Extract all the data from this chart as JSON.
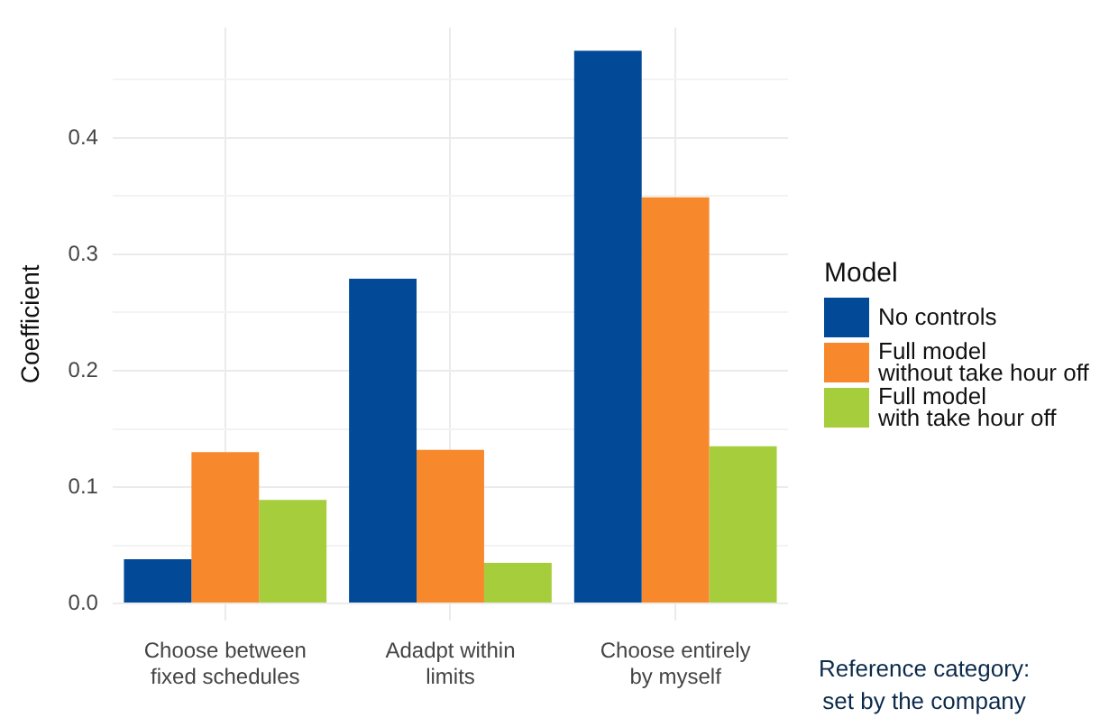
{
  "chart_data": {
    "type": "bar",
    "ylabel": "Coefficient",
    "legend_title": "Model",
    "legend": "right",
    "grid": true,
    "categories": [
      "Choose between\nfixed schedules",
      "Adadpt within\nlimits",
      "Choose entirely\nby myself"
    ],
    "series": [
      {
        "name": "No controls",
        "color": "#024a98",
        "values": [
          0.038,
          0.279,
          0.475
        ]
      },
      {
        "name": "Full model\nwithout take hour off",
        "color": "#f7882b",
        "values": [
          0.13,
          0.132,
          0.349
        ]
      },
      {
        "name": "Full model\nwith take hour off",
        "color": "#a6cd3c",
        "values": [
          0.089,
          0.035,
          0.135
        ]
      }
    ],
    "ylim": [
      -0.015,
      0.495
    ],
    "yticks": [
      {
        "value": 0,
        "label": "0.0"
      },
      {
        "value": 0.05,
        "label": null
      },
      0.1,
      {
        "value": 0.15,
        "label": null
      },
      0.2,
      {
        "value": 0.25,
        "label": null
      },
      0.3,
      {
        "value": 0.35,
        "label": null
      },
      0.4,
      {
        "value": 0.45,
        "label": null
      }
    ],
    "annotations": [
      "Reference category:\nset by the company"
    ]
  }
}
